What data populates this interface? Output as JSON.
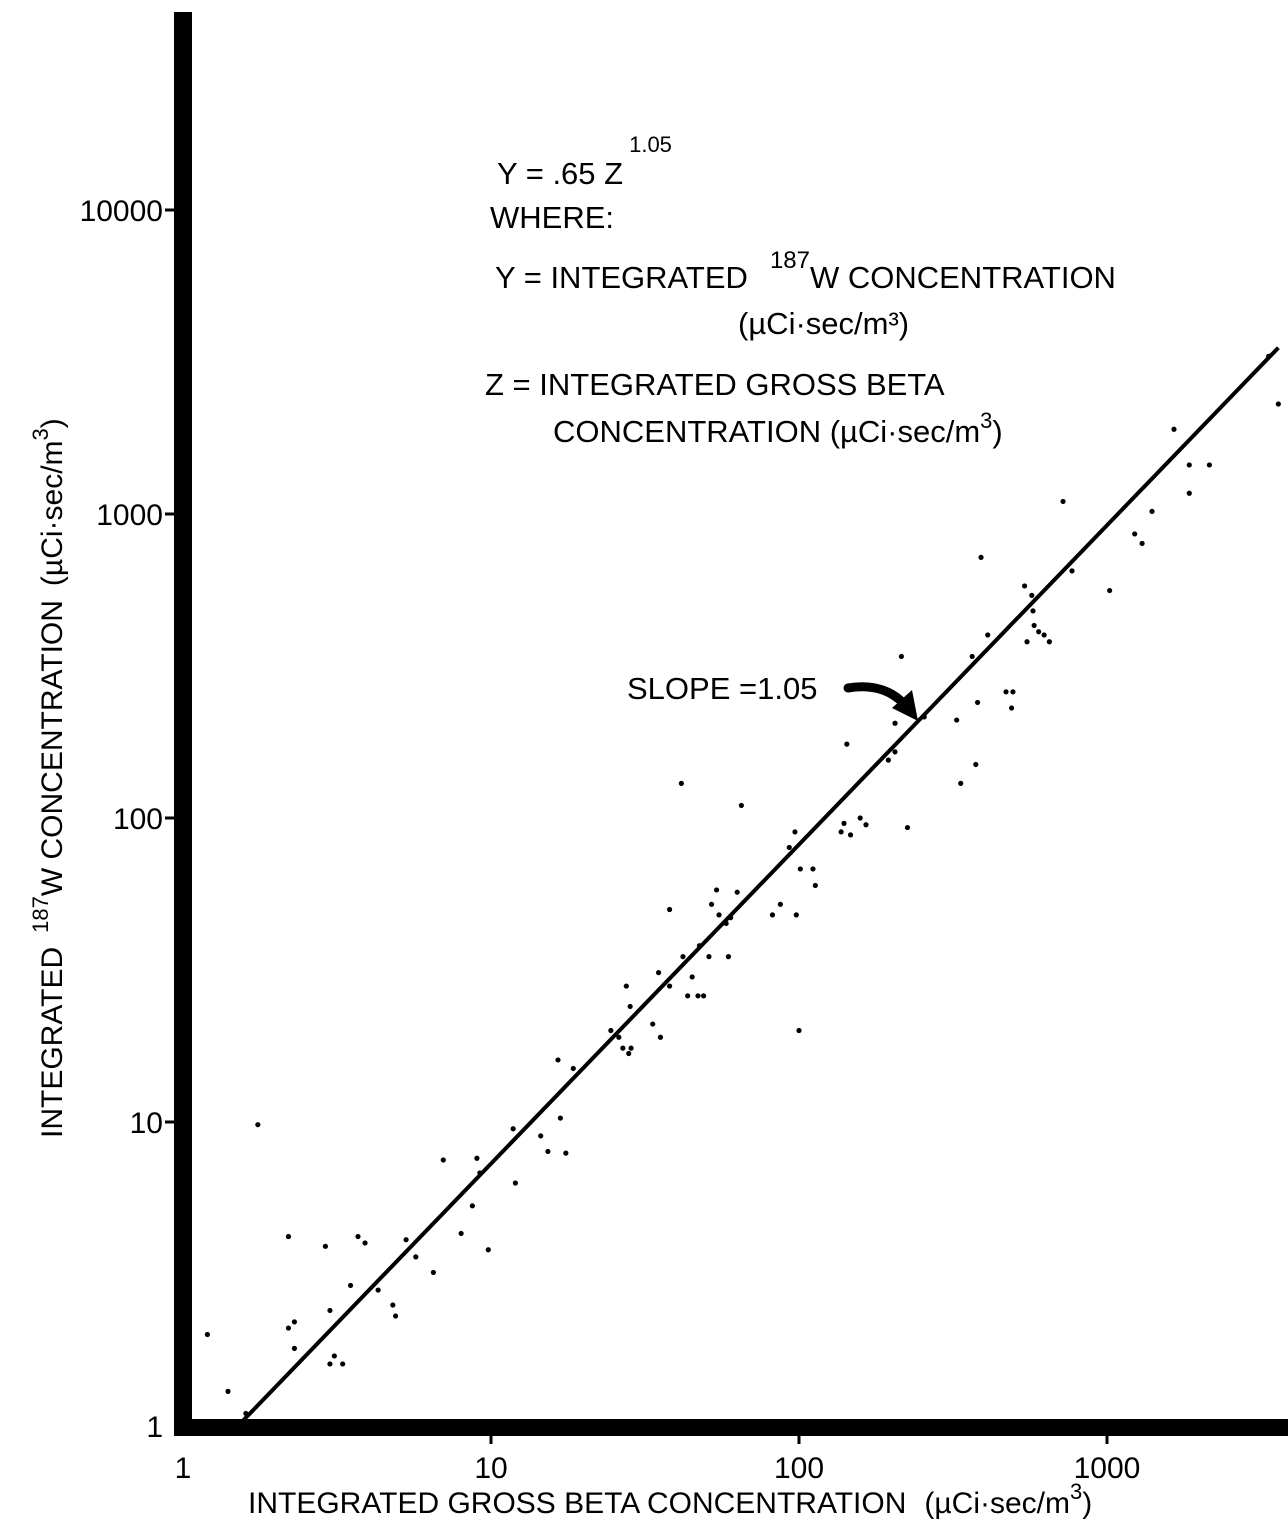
{
  "chart_data": {
    "type": "scatter",
    "title": "",
    "xlabel": {
      "main": "INTEGRATED GROSS BETA CONCENTRATION",
      "unit_open": "(µCi·sec/m",
      "unit_exp": "3",
      "unit_close": ")"
    },
    "ylabel": {
      "prefix": "INTEGRATED",
      "isotope_mass": "187",
      "rest": "W CONCENTRATION",
      "unit_open": "(µCi·sec/m",
      "unit_exp": "3",
      "unit_close": ")"
    },
    "x_scale": "log",
    "y_scale": "log",
    "xlim": [
      1,
      3600
    ],
    "ylim": [
      1,
      25000
    ],
    "x_ticks": [
      {
        "value": 1,
        "label": "1"
      },
      {
        "value": 10,
        "label": "10"
      },
      {
        "value": 100,
        "label": "100"
      },
      {
        "value": 1000,
        "label": "1000"
      }
    ],
    "y_ticks": [
      {
        "value": 1,
        "label": "1"
      },
      {
        "value": 10,
        "label": "10"
      },
      {
        "value": 100,
        "label": "100"
      },
      {
        "value": 1000,
        "label": "1000"
      },
      {
        "value": 10000,
        "label": "10000"
      }
    ],
    "grid": false,
    "fit_line": {
      "coefficient": 0.65,
      "exponent": 1.05,
      "x_start": 1.5,
      "x_end": 3600
    },
    "annotations": {
      "equation_base": "Y = .65 Z",
      "equation_exp": "1.05",
      "where": "WHERE:",
      "y_def_a": "Y = INTEGRATED",
      "y_def_sup": "187",
      "y_def_b": "W CONCENTRATION",
      "y_def_unit": "(µCi·sec/m³)",
      "z_def_1": "Z = INTEGRATED GROSS BETA",
      "z_def_2a": "CONCENTRATION (µCi·sec/m",
      "z_def_2sup": "3",
      "z_def_2b": ")",
      "slope_label": "SLOPE =1.05"
    },
    "points": [
      [
        1.2,
        2.0
      ],
      [
        1.4,
        1.3
      ],
      [
        1.6,
        1.1
      ],
      [
        1.75,
        9.8
      ],
      [
        2.2,
        4.2
      ],
      [
        2.2,
        2.1
      ],
      [
        2.3,
        2.2
      ],
      [
        2.3,
        1.8
      ],
      [
        2.9,
        3.9
      ],
      [
        3.0,
        2.4
      ],
      [
        3.0,
        1.6
      ],
      [
        3.1,
        1.7
      ],
      [
        3.3,
        1.6
      ],
      [
        3.5,
        2.9
      ],
      [
        3.7,
        4.2
      ],
      [
        3.9,
        4.0
      ],
      [
        4.3,
        2.8
      ],
      [
        4.8,
        2.5
      ],
      [
        4.9,
        2.3
      ],
      [
        5.3,
        4.1
      ],
      [
        5.7,
        3.6
      ],
      [
        6.5,
        3.2
      ],
      [
        7.0,
        7.5
      ],
      [
        8.0,
        4.3
      ],
      [
        8.7,
        5.3
      ],
      [
        9.0,
        7.6
      ],
      [
        9.2,
        6.8
      ],
      [
        9.8,
        3.8
      ],
      [
        11.8,
        9.5
      ],
      [
        12.0,
        6.3
      ],
      [
        14.5,
        9.0
      ],
      [
        15.3,
        8.0
      ],
      [
        16.5,
        16.0
      ],
      [
        16.8,
        10.3
      ],
      [
        17.5,
        7.9
      ],
      [
        18.5,
        15.0
      ],
      [
        24.5,
        20.0
      ],
      [
        26.0,
        19.0
      ],
      [
        26.8,
        17.5
      ],
      [
        27.5,
        28.0
      ],
      [
        28.0,
        16.8
      ],
      [
        28.5,
        17.5
      ],
      [
        28.3,
        24.0
      ],
      [
        33.5,
        21.0
      ],
      [
        35.5,
        19.0
      ],
      [
        35.0,
        31.0
      ],
      [
        38.0,
        28.0
      ],
      [
        38.0,
        50.0
      ],
      [
        41.5,
        130.0
      ],
      [
        42.0,
        35.0
      ],
      [
        43.5,
        26.0
      ],
      [
        45.0,
        30.0
      ],
      [
        47.0,
        26.0
      ],
      [
        47.5,
        38.0
      ],
      [
        49.0,
        26.0
      ],
      [
        51.0,
        35.0
      ],
      [
        52.0,
        52.0
      ],
      [
        54.0,
        58.0
      ],
      [
        55.0,
        48.0
      ],
      [
        58.0,
        45.0
      ],
      [
        59.0,
        35.0
      ],
      [
        60.0,
        47.0
      ],
      [
        63.0,
        57.0
      ],
      [
        65.0,
        110.0
      ],
      [
        82.0,
        48.0
      ],
      [
        87.0,
        52.0
      ],
      [
        93.0,
        80.0
      ],
      [
        97.0,
        90.0
      ],
      [
        98.0,
        48.0
      ],
      [
        100.0,
        20.0
      ],
      [
        101.0,
        68.0
      ],
      [
        111.0,
        68.0
      ],
      [
        113.0,
        60.0
      ],
      [
        137.0,
        90.0
      ],
      [
        140.0,
        96.0
      ],
      [
        143.0,
        175.0
      ],
      [
        147.0,
        88.0
      ],
      [
        158.0,
        100.0
      ],
      [
        165.0,
        95.0
      ],
      [
        195.0,
        155.0
      ],
      [
        205.0,
        165.0
      ],
      [
        205.0,
        205.0
      ],
      [
        215.0,
        340.0
      ],
      [
        225.0,
        93.0
      ],
      [
        255.0,
        215.0
      ],
      [
        325.0,
        210.0
      ],
      [
        335.0,
        130.0
      ],
      [
        365.0,
        340.0
      ],
      [
        375.0,
        150.0
      ],
      [
        380.0,
        240.0
      ],
      [
        390.0,
        720.0
      ],
      [
        410.0,
        400.0
      ],
      [
        470.0,
        260.0
      ],
      [
        490.0,
        230.0
      ],
      [
        495.0,
        260.0
      ],
      [
        540.0,
        580.0
      ],
      [
        550.0,
        380.0
      ],
      [
        570.0,
        540.0
      ],
      [
        575.0,
        480.0
      ],
      [
        580.0,
        430.0
      ],
      [
        600.0,
        410.0
      ],
      [
        625.0,
        400.0
      ],
      [
        650.0,
        380.0
      ],
      [
        720.0,
        1100.0
      ],
      [
        770.0,
        650.0
      ],
      [
        1020.0,
        560.0
      ],
      [
        1230.0,
        860.0
      ],
      [
        1300.0,
        800.0
      ],
      [
        1400.0,
        1020.0
      ],
      [
        1650.0,
        1900.0
      ],
      [
        1850.0,
        1450.0
      ],
      [
        1850.0,
        1170.0
      ],
      [
        2150.0,
        1450.0
      ],
      [
        3350.0,
        3300.0
      ],
      [
        3600.0,
        2300.0
      ]
    ]
  }
}
